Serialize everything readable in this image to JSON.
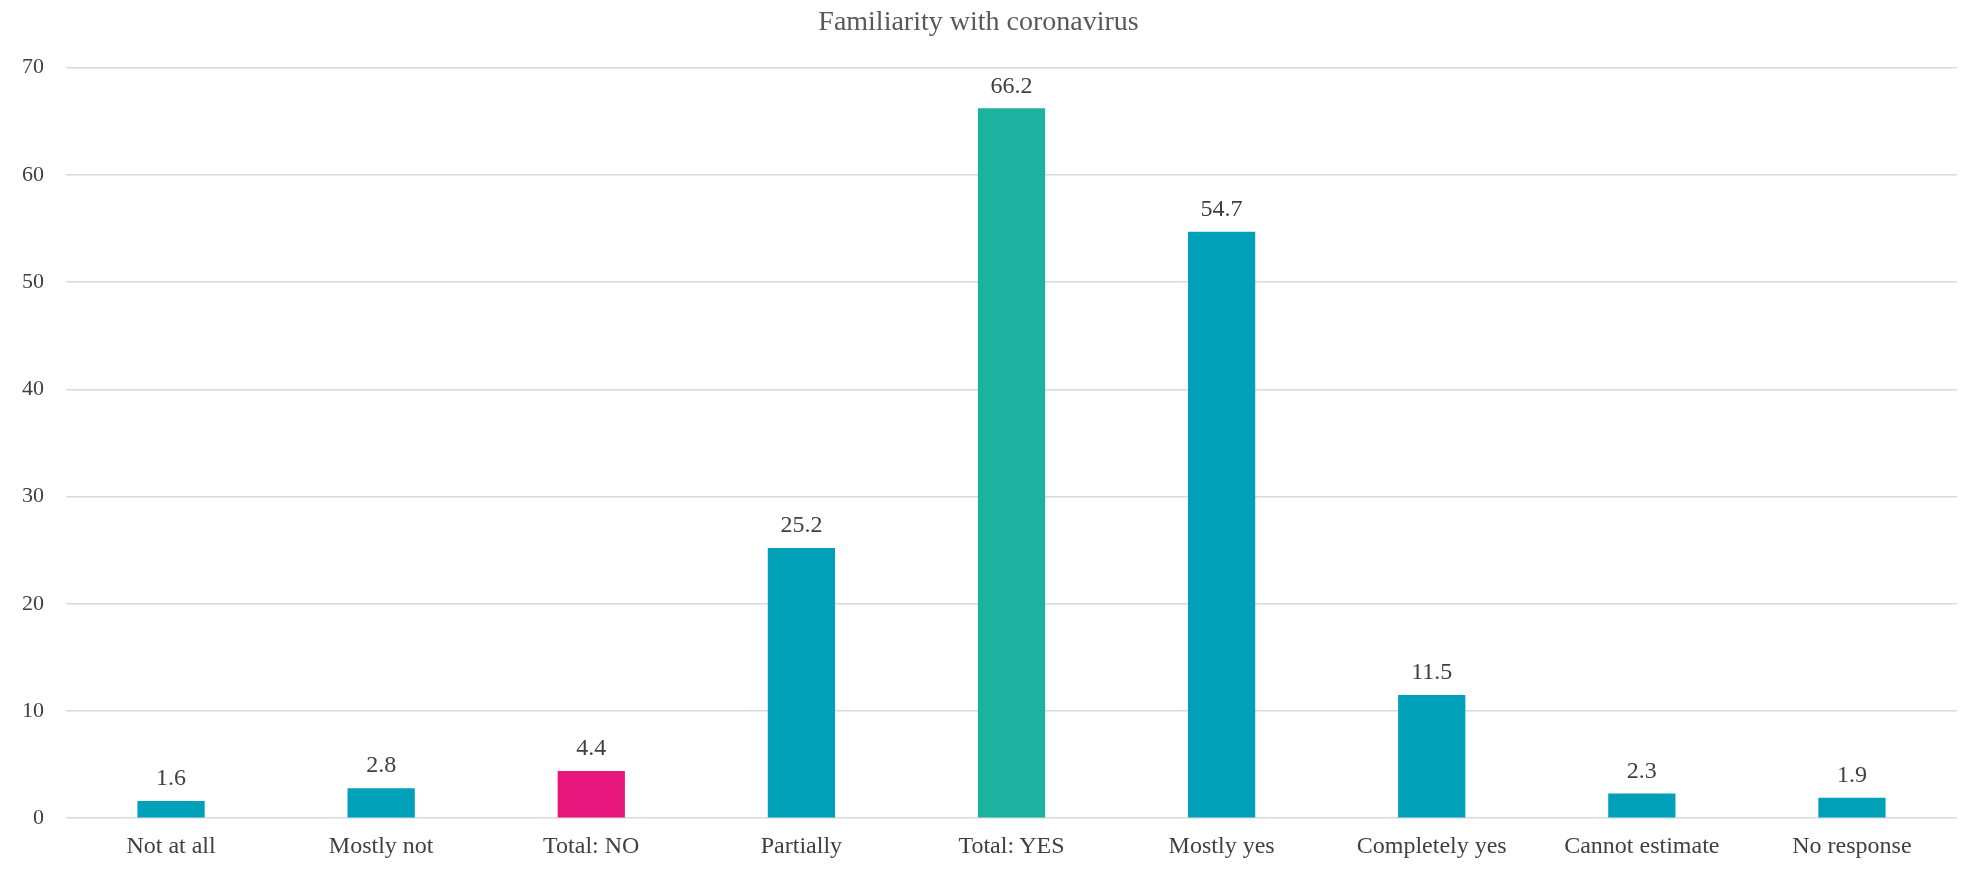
{
  "chart_data": {
    "type": "bar",
    "title": "Familiarity with coronavirus",
    "categories": [
      "Not at all",
      "Mostly not",
      "Total: NO",
      "Partially",
      "Total: YES",
      "Mostly yes",
      "Completely yes",
      "Cannot estimate",
      "No response"
    ],
    "values": [
      1.6,
      2.8,
      4.4,
      25.2,
      66.2,
      54.7,
      11.5,
      2.3,
      1.9
    ],
    "colors": [
      "#00a0b9",
      "#00a0b9",
      "#e8177d",
      "#00a0b9",
      "#1bb3a0",
      "#00a0b9",
      "#00a0b9",
      "#00a0b9",
      "#00a0b9"
    ],
    "ylim": [
      0,
      70
    ],
    "yticks": [
      0,
      10,
      20,
      30,
      40,
      50,
      60,
      70
    ],
    "grid": "y",
    "data_labels": true,
    "legend": false
  }
}
